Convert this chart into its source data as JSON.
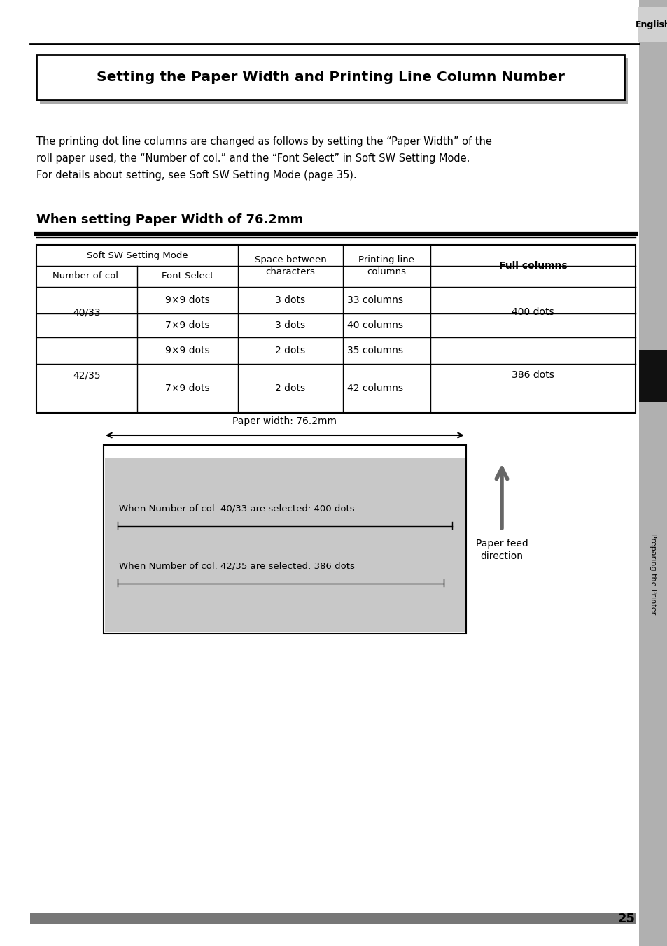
{
  "page_bg": "#ffffff",
  "right_tab_text": "English",
  "right_tab_side_text": "Preparing the Printer",
  "main_title": "Setting the Paper Width and Printing Line Column Number",
  "body_text_lines": [
    "The printing dot line columns are changed as follows by setting the “Paper Width” of the",
    "roll paper used, the “Number of col.” and the “Font Select” in Soft SW Setting Mode.",
    "For details about setting, see Soft SW Setting Mode (page 35)."
  ],
  "section_title": "When setting Paper Width of 76.2mm",
  "diagram_title": "Paper width: 76.2mm",
  "diagram_line1": "When Number of col. 40/33 are selected: 400 dots",
  "diagram_line2": "When Number of col. 42/35 are selected: 386 dots",
  "paper_feed_text": "Paper feed\ndirection",
  "page_number": "25",
  "footer_bar_color": "#777777",
  "tab_gray": "#aaaaaa",
  "tab_dark_gray": "#555555",
  "tab_black": "#111111"
}
